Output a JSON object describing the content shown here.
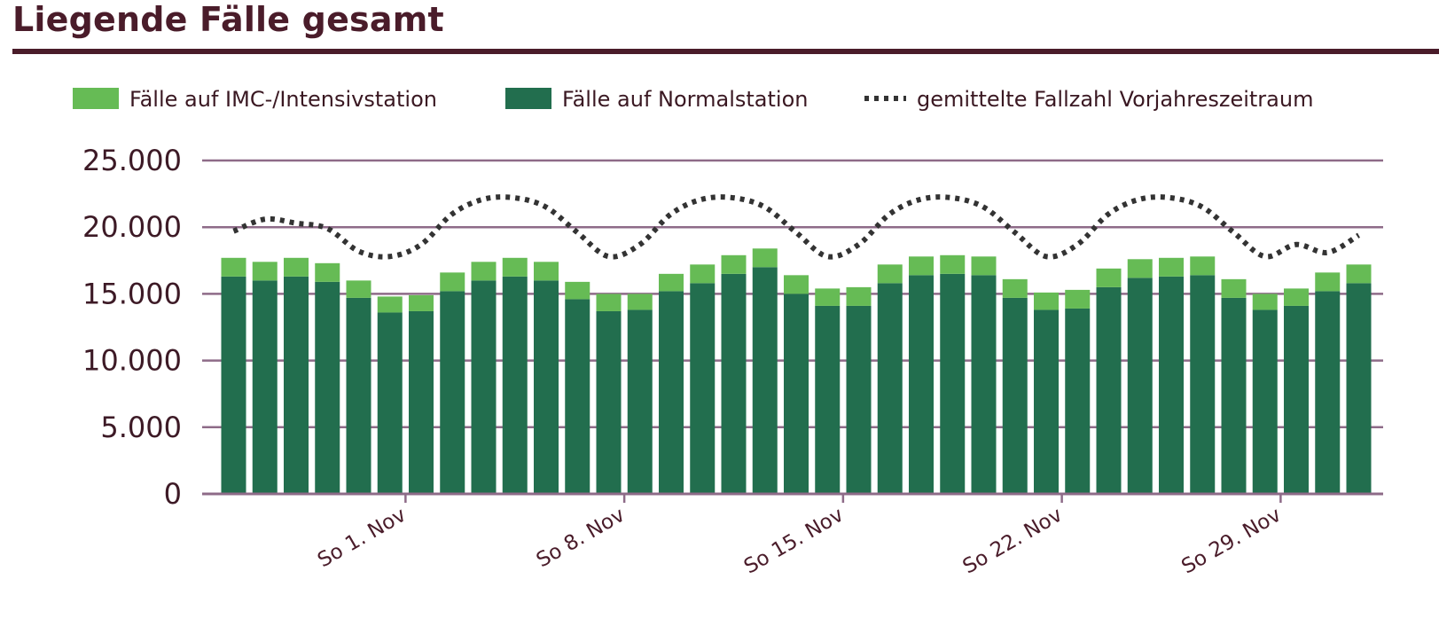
{
  "title": "Liegende Fälle gesamt",
  "colors": {
    "title": "#4a1c2a",
    "imc": "#66bb55",
    "normal": "#226e4e",
    "line": "#333333",
    "grid": "#8e6b88"
  },
  "chart_data": {
    "type": "bar",
    "stacked": true,
    "title": "Liegende Fälle gesamt",
    "xlabel": "",
    "ylabel": "",
    "ylim": [
      0,
      25000
    ],
    "yticks": [
      0,
      5000,
      10000,
      15000,
      20000,
      25000
    ],
    "ytick_labels": [
      "0",
      "5.000",
      "10.000",
      "15.000",
      "20.000",
      "25.000"
    ],
    "xtick_labels": [
      {
        "index": 5,
        "label": "So 1. Nov"
      },
      {
        "index": 12,
        "label": "So 8. Nov"
      },
      {
        "index": 19,
        "label": "So 15. Nov"
      },
      {
        "index": 26,
        "label": "So 22. Nov"
      },
      {
        "index": 33,
        "label": "So 29. Nov"
      }
    ],
    "grid": true,
    "legend_position": "top",
    "series": [
      {
        "name": "Fälle auf Normalstation",
        "kind": "bar",
        "color": "#226e4e",
        "values": [
          16300,
          16000,
          16300,
          15900,
          14700,
          13600,
          13700,
          15200,
          16000,
          16300,
          16000,
          14600,
          13700,
          13800,
          15200,
          15800,
          16500,
          17000,
          15000,
          14100,
          14100,
          15800,
          16400,
          16500,
          16400,
          14700,
          13800,
          13900,
          15500,
          16200,
          16300,
          16400,
          14700,
          13800,
          14100,
          15200,
          15800
        ]
      },
      {
        "name": "Fälle auf IMC-/Intensivstation",
        "kind": "bar",
        "color": "#66bb55",
        "values": [
          1400,
          1400,
          1400,
          1400,
          1300,
          1200,
          1200,
          1400,
          1400,
          1400,
          1400,
          1300,
          1300,
          1200,
          1300,
          1400,
          1400,
          1400,
          1400,
          1300,
          1400,
          1400,
          1400,
          1400,
          1400,
          1400,
          1300,
          1400,
          1400,
          1400,
          1400,
          1400,
          1400,
          1200,
          1300,
          1400,
          1400
        ]
      },
      {
        "name": "gemittelte Fallzahl Vorjahreszeitraum",
        "kind": "line",
        "style": "dotted",
        "color": "#333333",
        "values": [
          19700,
          20600,
          20300,
          19900,
          18200,
          17800,
          18700,
          21000,
          22100,
          22200,
          21500,
          19600,
          17800,
          18700,
          21000,
          22100,
          22200,
          21500,
          19600,
          17800,
          18700,
          21000,
          22100,
          22200,
          21500,
          19600,
          17800,
          18700,
          21000,
          22100,
          22200,
          21500,
          19600,
          17800,
          18700,
          18100,
          19400
        ]
      }
    ]
  },
  "legend": [
    {
      "label": "Fälle auf IMC-/Intensivstation",
      "swatch": "box",
      "color": "#66bb55"
    },
    {
      "label": "Fälle auf Normalstation",
      "swatch": "box",
      "color": "#226e4e"
    },
    {
      "label": "gemittelte Fallzahl Vorjahreszeitraum",
      "swatch": "dots",
      "color": "#333333"
    }
  ]
}
